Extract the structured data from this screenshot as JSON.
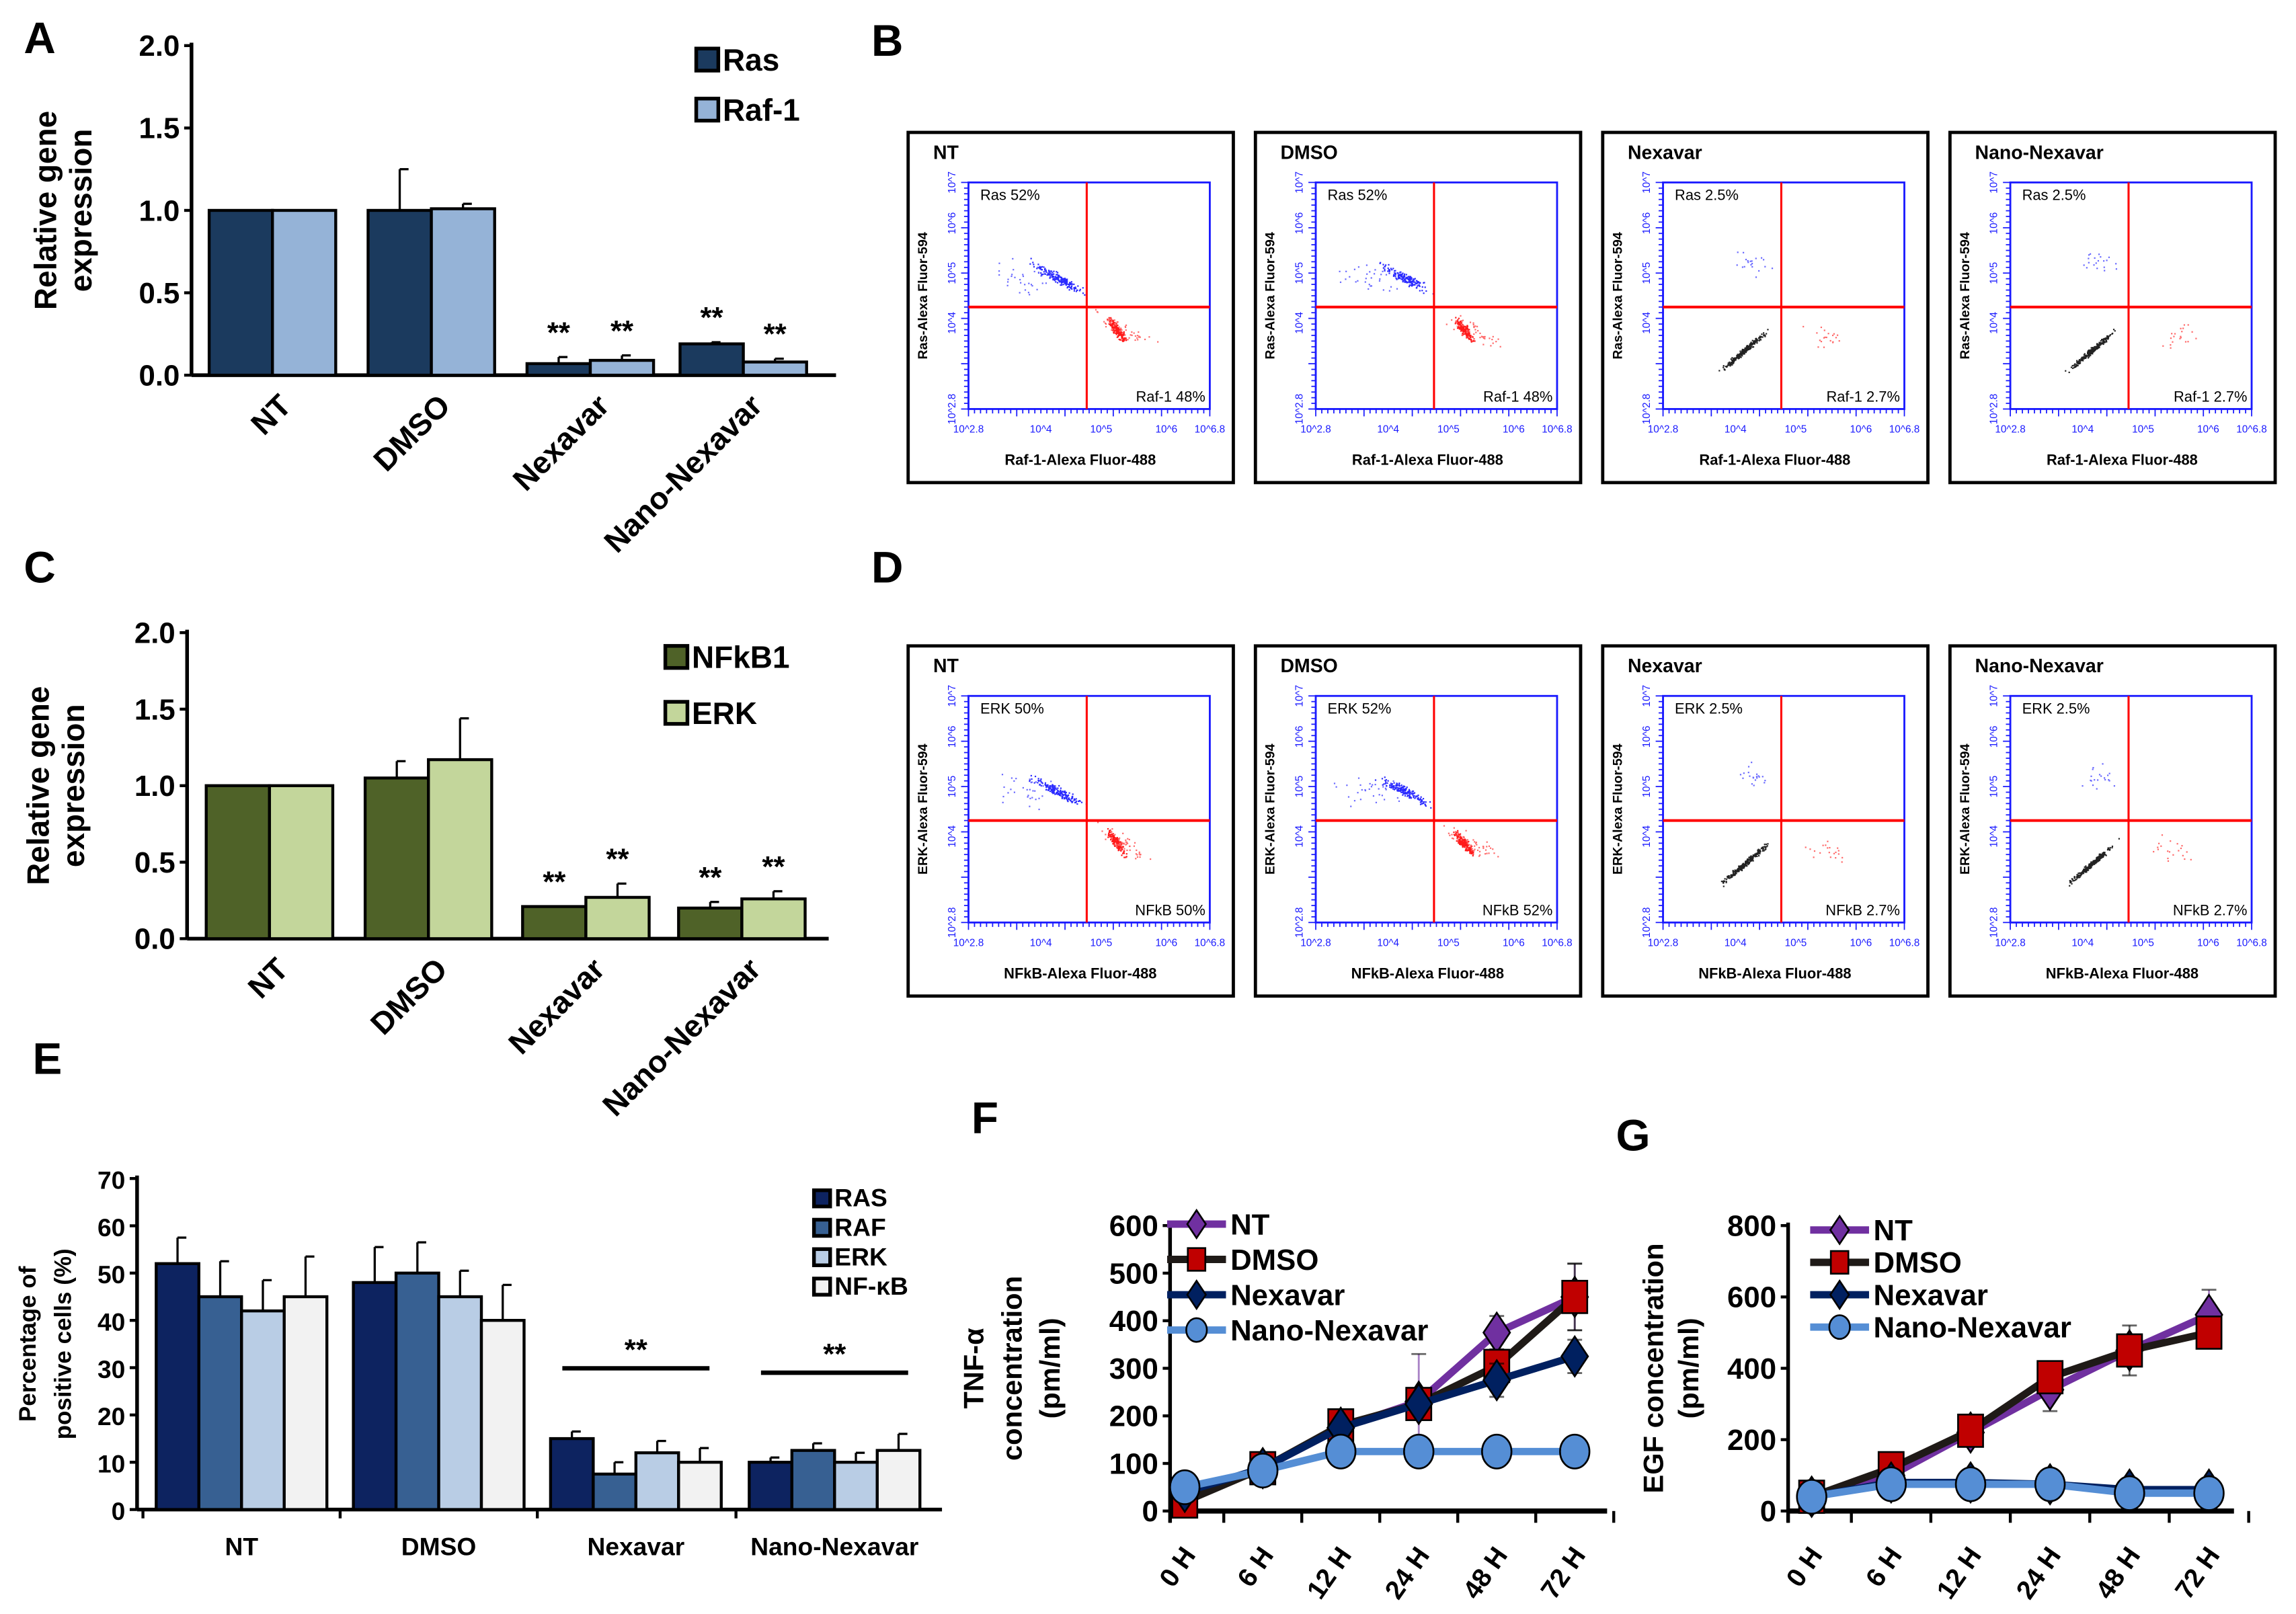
{
  "panel_letters": {
    "A": "A",
    "B": "B",
    "C": "C",
    "D": "D",
    "E": "E",
    "F": "F",
    "G": "G"
  },
  "chart_data": [
    {
      "id": "A",
      "type": "bar",
      "ylabel": [
        "Relative gene",
        "expression"
      ],
      "ylim": [
        0,
        2.0
      ],
      "yticks": [
        "0.0",
        "0.5",
        "1.0",
        "1.5",
        "2.0"
      ],
      "categories": [
        "NT",
        "DMSO",
        "Nexavar",
        "Nano-Nexavar"
      ],
      "series": [
        {
          "name": "Ras",
          "color": "#1b3a5e",
          "values": [
            1.0,
            1.0,
            0.07,
            0.19
          ],
          "errors": [
            0,
            0.25,
            0.04,
            0.01
          ]
        },
        {
          "name": "Raf-1",
          "color": "#95b3d7",
          "values": [
            1.0,
            1.01,
            0.09,
            0.08
          ],
          "errors": [
            0,
            0.03,
            0.03,
            0.02
          ]
        }
      ],
      "significance": {
        "Nexavar": [
          "**",
          "**"
        ],
        "Nano-Nexavar": [
          "**",
          "**"
        ]
      },
      "legend": "top-right",
      "grid": false
    },
    {
      "id": "C",
      "type": "bar",
      "ylabel": [
        "Relative gene",
        "expression"
      ],
      "ylim": [
        0,
        2.0
      ],
      "yticks": [
        "0.0",
        "0.5",
        "1.0",
        "1.5",
        "2.0"
      ],
      "categories": [
        "NT",
        "DMSO",
        "Nexavar",
        "Nano-Nexavar"
      ],
      "series": [
        {
          "name": "NFkB1",
          "color": "#4f6228",
          "values": [
            1.0,
            1.05,
            0.21,
            0.2
          ],
          "errors": [
            0,
            0.11,
            0,
            0.04
          ]
        },
        {
          "name": "ERK",
          "color": "#c3d69b",
          "values": [
            1.0,
            1.17,
            0.27,
            0.26
          ],
          "errors": [
            0,
            0.27,
            0.09,
            0.05
          ]
        }
      ],
      "significance": {
        "Nexavar": [
          "**",
          "**"
        ],
        "Nano-Nexavar": [
          "**",
          "**"
        ]
      },
      "legend": "top-right",
      "grid": false
    },
    {
      "id": "E",
      "type": "bar",
      "ylabel": [
        "Percentage of",
        "positive cells (%)"
      ],
      "ylim": [
        0,
        70
      ],
      "yticks": [
        "0",
        "10",
        "20",
        "30",
        "40",
        "50",
        "60",
        "70"
      ],
      "categories": [
        "NT",
        "DMSO",
        "Nexavar",
        "Nano-Nexavar"
      ],
      "series": [
        {
          "name": "RAS",
          "color": "#0d2360",
          "values": [
            52,
            48,
            15,
            10
          ],
          "errors": [
            5.5,
            7.5,
            1.5,
            1
          ]
        },
        {
          "name": "RAF",
          "color": "#376092",
          "values": [
            45,
            50,
            7.5,
            12.5
          ],
          "errors": [
            7.5,
            6.5,
            2.5,
            1.5
          ]
        },
        {
          "name": "ERK",
          "color": "#b9cde5",
          "values": [
            42,
            45,
            12,
            10
          ],
          "errors": [
            6.5,
            5.5,
            2.5,
            2
          ]
        },
        {
          "name": "NF-κB",
          "color": "#f2f2f2",
          "values": [
            45,
            40,
            10,
            12.5
          ],
          "errors": [
            8.5,
            7.5,
            3,
            3.5
          ]
        }
      ],
      "significance": {
        "Nexavar": "**",
        "Nano-Nexavar": "**"
      },
      "legend": "top-right",
      "grid": false
    },
    {
      "id": "F",
      "type": "line",
      "ylabel": [
        "TNF-α",
        "concentration",
        "(pm/ml)"
      ],
      "ylim": [
        0,
        600
      ],
      "yticks": [
        "0",
        "100",
        "200",
        "300",
        "400",
        "500",
        "600"
      ],
      "categories": [
        "0 H",
        "6 H",
        "12 H",
        "24 H",
        "48 H",
        "72 H"
      ],
      "series": [
        {
          "name": "NT",
          "color": "#7030a0",
          "marker": "diamond",
          "values": [
            30,
            90,
            175,
            230,
            375,
            450
          ],
          "errors": [
            0,
            0,
            0,
            100,
            35,
            70
          ]
        },
        {
          "name": "DMSO",
          "color": "#1f1a17",
          "fill": "#c00000",
          "marker": "square",
          "values": [
            20,
            90,
            180,
            225,
            305,
            450
          ],
          "errors": [
            0,
            0,
            0,
            30,
            0,
            70
          ]
        },
        {
          "name": "Nexavar",
          "color": "#002060",
          "marker": "diamond",
          "values": [
            40,
            90,
            175,
            225,
            275,
            325
          ],
          "errors": [
            0,
            0,
            0,
            0,
            35,
            35
          ]
        },
        {
          "name": "Nano-Nexavar",
          "color": "#558ed5",
          "marker": "circle",
          "values": [
            50,
            85,
            125,
            125,
            125,
            125
          ],
          "errors": [
            0,
            0,
            0,
            0,
            0,
            0
          ]
        }
      ],
      "legend": "top-left",
      "grid": false
    },
    {
      "id": "G",
      "type": "line",
      "ylabel": [
        "EGF concentration",
        "(pm/ml)"
      ],
      "ylim": [
        0,
        800
      ],
      "yticks": [
        "0",
        "200",
        "400",
        "600",
        "800"
      ],
      "categories": [
        "0 H",
        "6 H",
        "12 H",
        "24 H",
        "48 H",
        "72 H"
      ],
      "series": [
        {
          "name": "NT",
          "color": "#7030a0",
          "marker": "diamond",
          "values": [
            40,
            100,
            220,
            340,
            450,
            550
          ],
          "errors": [
            0,
            0,
            0,
            60,
            0,
            70
          ]
        },
        {
          "name": "DMSO",
          "color": "#1f1a17",
          "fill": "#c00000",
          "marker": "square",
          "values": [
            40,
            120,
            225,
            375,
            450,
            500
          ],
          "errors": [
            0,
            40,
            0,
            0,
            70,
            0
          ]
        },
        {
          "name": "Nexavar",
          "color": "#002060",
          "marker": "diamond",
          "values": [
            40,
            80,
            80,
            75,
            60,
            60
          ],
          "errors": [
            0,
            0,
            0,
            0,
            0,
            0
          ]
        },
        {
          "name": "Nano-Nexavar",
          "color": "#558ed5",
          "marker": "circle",
          "values": [
            40,
            75,
            75,
            75,
            50,
            50
          ],
          "errors": [
            0,
            0,
            0,
            0,
            0,
            0
          ]
        }
      ],
      "legend": "top-left",
      "grid": false
    }
  ],
  "flow_cytometry": [
    {
      "id": "B",
      "ylabel": "Ras-Alexa Fluor-594",
      "xlabel": "Raf-1-Alexa Fluor-488",
      "xticks": [
        "10^2.8",
        "10^4",
        "10^5",
        "10^6",
        "10^6.8"
      ],
      "yticks": [
        "10^2.8",
        "10^4",
        "10^5",
        "10^6",
        "10^7"
      ],
      "plots": [
        {
          "title": "NT",
          "upper_left": "Ras 52%",
          "lower_right": "Raf-1 48%",
          "pattern": "positive"
        },
        {
          "title": "DMSO",
          "upper_left": "Ras 52%",
          "lower_right": "Raf-1 48%",
          "pattern": "positive"
        },
        {
          "title": "Nexavar",
          "upper_left": "Ras 2.5%",
          "lower_right": "Raf-1 2.7%",
          "pattern": "negative"
        },
        {
          "title": "Nano-Nexavar",
          "upper_left": "Ras 2.5%",
          "lower_right": "Raf-1 2.7%",
          "pattern": "negative"
        }
      ]
    },
    {
      "id": "D",
      "ylabel": "ERK-Alexa Fluor-594",
      "xlabel": "NFkB-Alexa Fluor-488",
      "xticks": [
        "10^2.8",
        "10^4",
        "10^5",
        "10^6",
        "10^6.8"
      ],
      "yticks": [
        "10^2.8",
        "10^4",
        "10^5",
        "10^6",
        "10^7"
      ],
      "plots": [
        {
          "title": "NT",
          "upper_left": "ERK 50%",
          "lower_right": "NFkB 50%",
          "pattern": "positive"
        },
        {
          "title": "DMSO",
          "upper_left": "ERK 52%",
          "lower_right": "NFkB 52%",
          "pattern": "positive"
        },
        {
          "title": "Nexavar",
          "upper_left": "ERK 2.5%",
          "lower_right": "NFkB 2.7%",
          "pattern": "negative"
        },
        {
          "title": "Nano-Nexavar",
          "upper_left": "ERK 2.5%",
          "lower_right": "NFkB 2.7%",
          "pattern": "negative"
        }
      ]
    }
  ]
}
